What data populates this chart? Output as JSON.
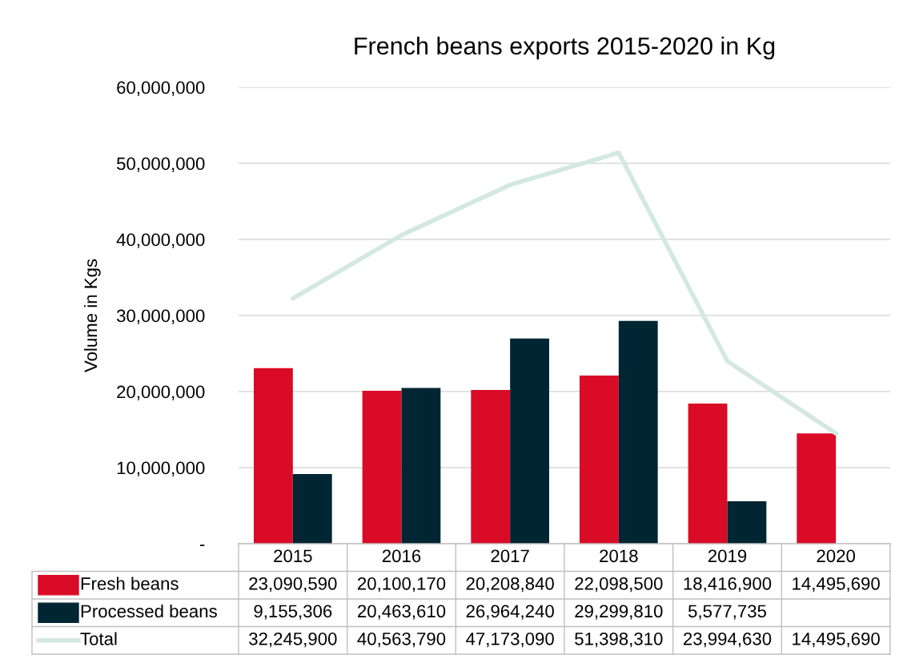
{
  "chart_data": {
    "type": "bar",
    "title": "French beans exports 2015-2020 in Kg",
    "ylabel": "Volume in Kgs",
    "categories": [
      "2015",
      "2016",
      "2017",
      "2018",
      "2019",
      "2020"
    ],
    "series": [
      {
        "name": "Fresh beans",
        "color": "#d90b27",
        "values": [
          23090590,
          20100170,
          20208840,
          22098500,
          18416900,
          14495690
        ],
        "value_labels": [
          "23,090,590",
          "20,100,170",
          "20,208,840",
          "22,098,500",
          "18,416,900",
          "14,495,690"
        ]
      },
      {
        "name": "Processed beans",
        "color": "#002633",
        "values": [
          9155306,
          20463610,
          26964240,
          29299810,
          5577735,
          null
        ],
        "value_labels": [
          "9,155,306",
          "20,463,610",
          "26,964,240",
          "29,299,810",
          "5,577,735",
          null
        ]
      },
      {
        "name": "Total",
        "type": "line",
        "color": "#d3e8e0",
        "values": [
          32245900,
          40563790,
          47173090,
          51398310,
          23994630,
          14495690
        ],
        "value_labels": [
          "32,245,900",
          "40,563,790",
          "47,173,090",
          "51,398,310",
          "23,994,630",
          "14,495,690"
        ]
      }
    ],
    "ylim": [
      0,
      60000000
    ],
    "yticks": [
      {
        "value": 0,
        "label": "-"
      },
      {
        "value": 10000000,
        "label": "10,000,000"
      },
      {
        "value": 20000000,
        "label": "20,000,000"
      },
      {
        "value": 30000000,
        "label": "30,000,000"
      },
      {
        "value": 40000000,
        "label": "40,000,000"
      },
      {
        "value": 50000000,
        "label": "50,000,000"
      },
      {
        "value": 60000000,
        "label": "60,000,000"
      }
    ],
    "grid": "y",
    "legend": "bottom"
  }
}
